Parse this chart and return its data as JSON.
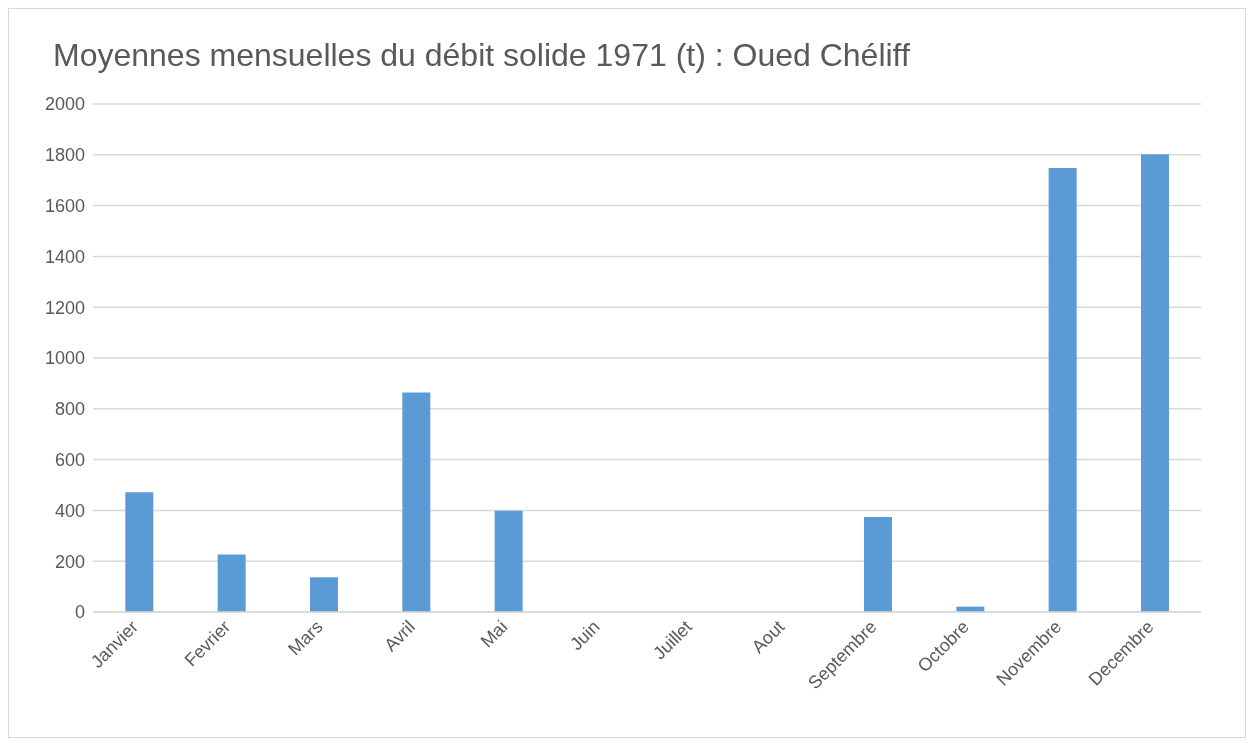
{
  "chart_data": {
    "type": "bar",
    "title": "Moyennes mensuelles du débit solide 1971 (t) : Oued Chéliff",
    "categories": [
      "Janvier",
      "Fevrier",
      "Mars",
      "Avril",
      "Mai",
      "Juin",
      "Juillet",
      "Aout",
      "Septembre",
      "Octobre",
      "Novembre",
      "Decembre"
    ],
    "values": [
      471,
      226,
      137,
      864,
      399,
      0,
      0,
      0,
      374,
      21,
      1748,
      1802
    ],
    "color": "#5b9bd5",
    "ylim": [
      0,
      2000
    ],
    "yticks": [
      0,
      200,
      400,
      600,
      800,
      1000,
      1200,
      1400,
      1600,
      1800,
      2000
    ],
    "grid": "y"
  }
}
